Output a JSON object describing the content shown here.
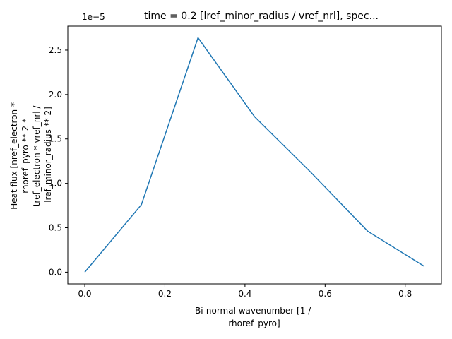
{
  "chart_data": {
    "type": "line",
    "title": "time = 0.2 [lref_minor_radius / vref_nrl], spec...",
    "xlabel": [
      "Bi-normal wavenumber [1 /",
      "rhoref_pyro]"
    ],
    "ylabel": [
      "Heat flux [nref_electron *",
      "rhoref_pyro ** 2 *",
      "tref_electron * vref_nrl /",
      "lref_minor_radius ** 2]"
    ],
    "y_offset_label": "1e−5",
    "xlim": [
      -0.0424,
      0.8904
    ],
    "ylim": [
      -0.132,
      2.77
    ],
    "x_ticks": [
      0.0,
      0.2,
      0.4,
      0.6,
      0.8
    ],
    "x_tick_labels": [
      "0.0",
      "0.2",
      "0.4",
      "0.6",
      "0.8"
    ],
    "y_ticks": [
      0.0,
      0.5,
      1.0,
      1.5,
      2.0,
      2.5
    ],
    "y_tick_labels": [
      "0.0",
      "0.5",
      "1.0",
      "1.5",
      "2.0",
      "2.5"
    ],
    "grid": false,
    "series": [
      {
        "color": "#1f77b4",
        "x": [
          0.0,
          0.1413,
          0.2827,
          0.424,
          0.5653,
          0.7067,
          0.848
        ],
        "y": [
          0.0,
          0.76,
          2.64,
          1.75,
          1.12,
          0.46,
          0.065
        ]
      }
    ]
  }
}
